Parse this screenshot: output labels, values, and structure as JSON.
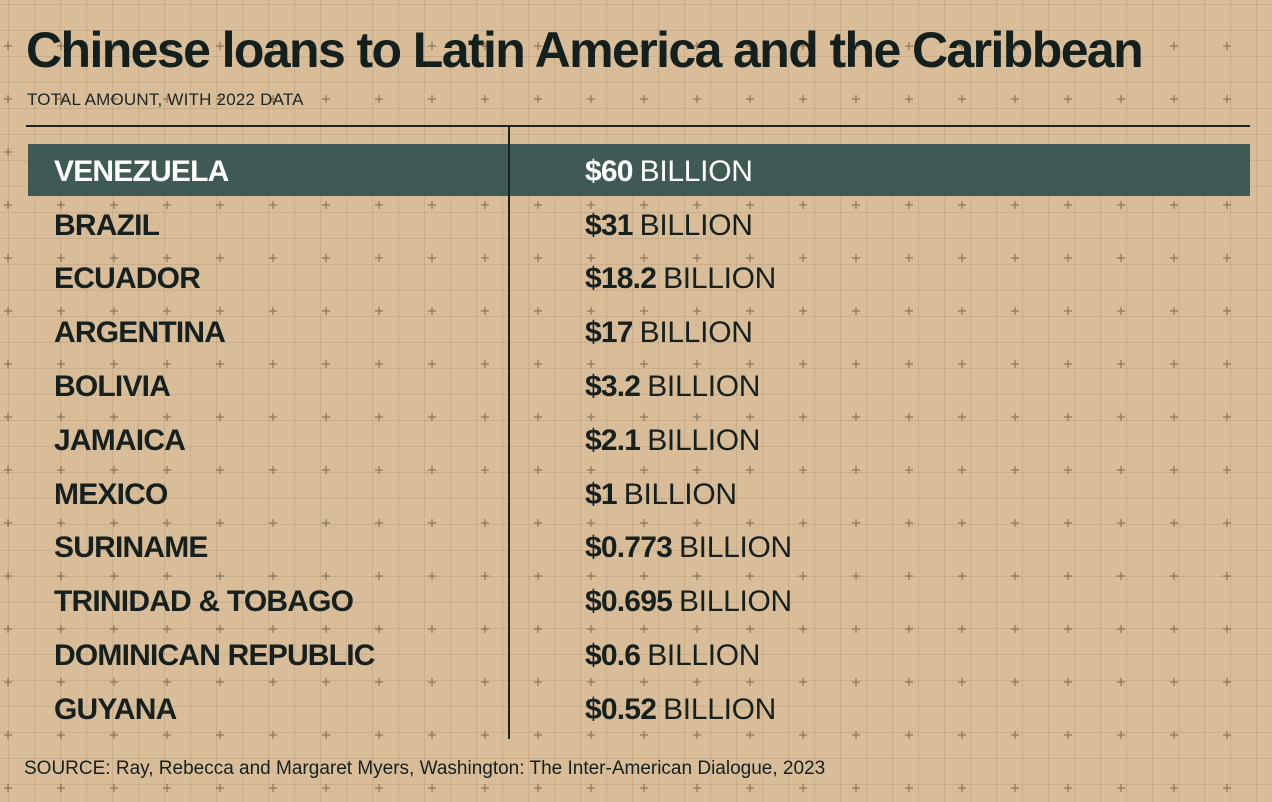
{
  "chart_data": {
    "type": "table",
    "title": "Chinese loans to Latin America and the Caribbean",
    "subtitle": "TOTAL AMOUNT, WITH 2022 DATA",
    "unit_label": "BILLION",
    "rows": [
      {
        "country": "VENEZUELA",
        "amount": "$60",
        "value": 60,
        "highlight": true
      },
      {
        "country": "BRAZIL",
        "amount": "$31",
        "value": 31
      },
      {
        "country": "ECUADOR",
        "amount": "$18.2",
        "value": 18.2
      },
      {
        "country": "ARGENTINA",
        "amount": "$17",
        "value": 17
      },
      {
        "country": "BOLIVIA",
        "amount": "$3.2",
        "value": 3.2
      },
      {
        "country": "JAMAICA",
        "amount": "$2.1",
        "value": 2.1
      },
      {
        "country": "MEXICO",
        "amount": "$1",
        "value": 1
      },
      {
        "country": "SURINAME",
        "amount": "$0.773",
        "value": 0.773
      },
      {
        "country": "TRINIDAD & TOBAGO",
        "amount": "$0.695",
        "value": 0.695
      },
      {
        "country": "DOMINICAN REPUBLIC",
        "amount": "$0.6",
        "value": 0.6
      },
      {
        "country": "GUYANA",
        "amount": "$0.52",
        "value": 0.52
      }
    ],
    "source": "SOURCE: Ray, Rebecca and Margaret Myers, Washington: The Inter-American Dialogue, 2023"
  },
  "colors": {
    "background": "#d8bd98",
    "highlight_row": "#3f5955",
    "text": "#16201f",
    "highlight_text": "#ffffff"
  }
}
